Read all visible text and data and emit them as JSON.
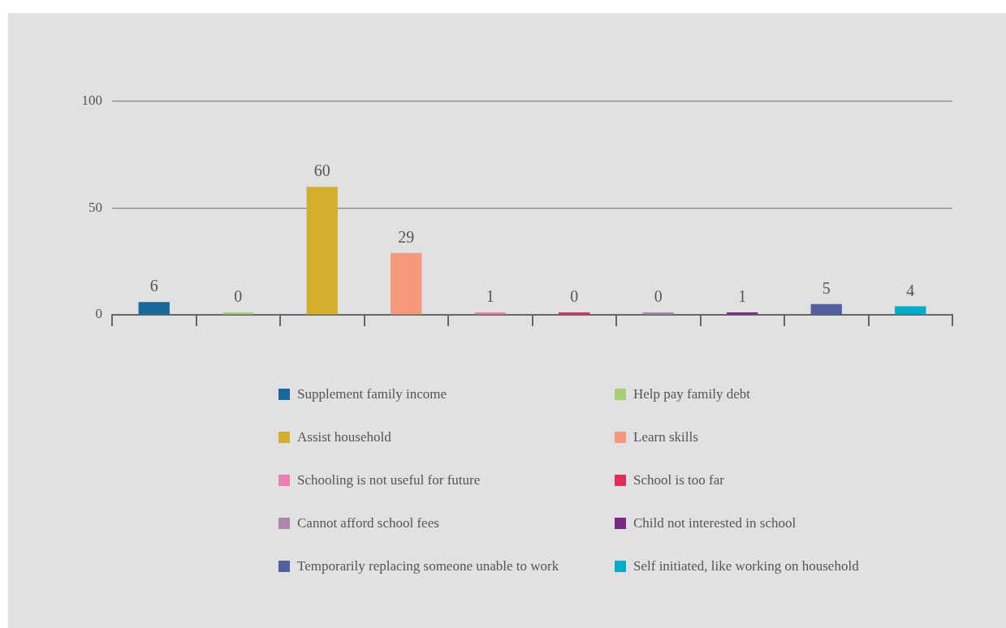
{
  "chart_data": {
    "type": "bar",
    "categories": [
      null,
      null,
      null,
      null,
      null,
      null,
      null,
      null,
      null,
      null
    ],
    "series": [
      {
        "name": "Supplement family income",
        "color": "#17689b",
        "values": [
          6,
          null,
          null,
          null,
          null,
          null,
          null,
          null,
          null,
          null
        ]
      },
      {
        "name": "Help pay family debt",
        "color": "#a6cf78",
        "values": [
          null,
          0,
          null,
          null,
          null,
          null,
          null,
          null,
          null,
          null
        ]
      },
      {
        "name": "Assist household",
        "color": "#d5ae2d",
        "values": [
          null,
          null,
          60,
          null,
          null,
          null,
          null,
          null,
          null,
          null
        ]
      },
      {
        "name": "Learn skills",
        "color": "#f6997b",
        "values": [
          null,
          null,
          null,
          29,
          null,
          null,
          null,
          null,
          null,
          null
        ]
      },
      {
        "name": "Schooling is not useful for future",
        "color": "#ec7fae",
        "values": [
          null,
          null,
          null,
          null,
          1,
          null,
          null,
          null,
          null,
          null
        ]
      },
      {
        "name": "School is too far",
        "color": "#e32d55",
        "values": [
          null,
          null,
          null,
          null,
          null,
          0,
          null,
          null,
          null,
          null
        ]
      },
      {
        "name": "Cannot afford school fees",
        "color": "#ab88ad",
        "values": [
          null,
          null,
          null,
          null,
          null,
          null,
          0,
          null,
          null,
          null
        ]
      },
      {
        "name": "Child not interested in school",
        "color": "#7a2882",
        "values": [
          null,
          null,
          null,
          null,
          null,
          null,
          null,
          1,
          null,
          null
        ]
      },
      {
        "name": "Temporarily replacing someone unable to work",
        "color": "#545f9e",
        "values": [
          null,
          null,
          null,
          null,
          null,
          null,
          null,
          null,
          5,
          null
        ]
      },
      {
        "name": "Self initiated, like working on household",
        "color": "#00adc9",
        "values": [
          null,
          null,
          null,
          null,
          null,
          null,
          null,
          null,
          null,
          4
        ]
      }
    ],
    "ylim": [
      0,
      100
    ],
    "yticks": [
      0,
      50,
      100
    ],
    "grid": "y",
    "legend": "bottom",
    "data_labels": true
  }
}
